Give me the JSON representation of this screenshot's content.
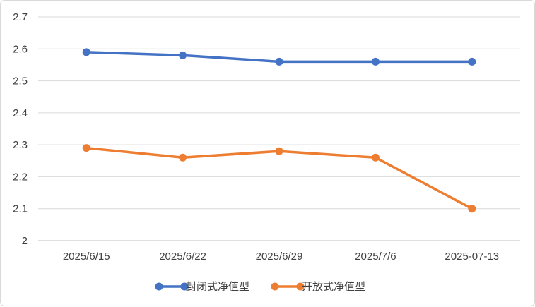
{
  "chart_data": {
    "type": "line",
    "categories": [
      "2025/6/15",
      "2025/6/22",
      "2025/6/29",
      "2025/7/6",
      "2025-07-13"
    ],
    "series": [
      {
        "name": "封闭式净值型",
        "color": "#4472C4",
        "values": [
          2.59,
          2.58,
          2.56,
          2.56,
          2.56
        ]
      },
      {
        "name": "开放式净值型",
        "color": "#ED7D31",
        "values": [
          2.29,
          2.26,
          2.28,
          2.26,
          2.1
        ]
      }
    ],
    "ylim": [
      2.0,
      2.7
    ],
    "yticks": [
      "2",
      "2.1",
      "2.2",
      "2.3",
      "2.4",
      "2.5",
      "2.6",
      "2.7"
    ],
    "ytick_values": [
      2.0,
      2.1,
      2.2,
      2.3,
      2.4,
      2.5,
      2.6,
      2.7
    ],
    "grid": true,
    "legend_position": "bottom",
    "markers": "circle"
  }
}
